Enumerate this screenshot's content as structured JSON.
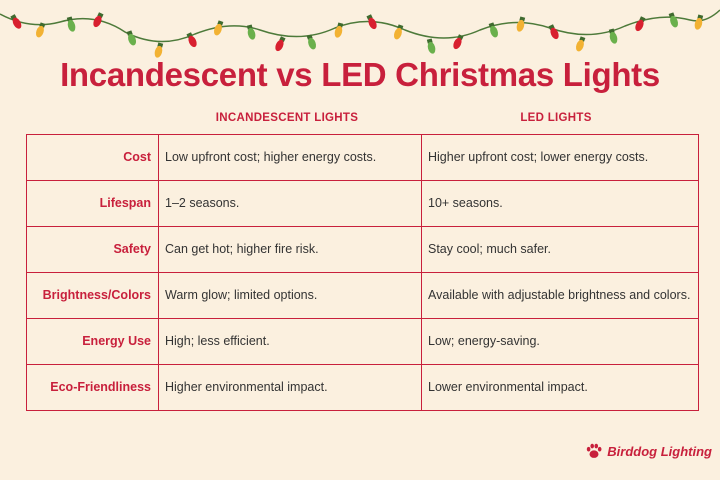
{
  "title": "Incandescent vs LED Christmas Lights",
  "columns": {
    "incandescent": "INCANDESCENT LIGHTS",
    "led": "LED LIGHTS"
  },
  "rows": [
    {
      "label": "Cost",
      "incandescent": "Low upfront cost; higher energy costs.",
      "led": "Higher upfront cost; lower energy costs."
    },
    {
      "label": "Lifespan",
      "incandescent": "1–2 seasons.",
      "led": "10+ seasons."
    },
    {
      "label": "Safety",
      "incandescent": "Can get hot; higher fire risk.",
      "led": "Stay cool; much safer."
    },
    {
      "label": "Brightness/Colors",
      "incandescent": "Warm glow; limited options.",
      "led": "Available with adjustable brightness and colors."
    },
    {
      "label": "Energy Use",
      "incandescent": "High; less efficient.",
      "led": "Low; energy-saving."
    },
    {
      "label": "Eco-Friendliness",
      "incandescent": "Higher environmental impact.",
      "led": "Lower environmental impact."
    }
  ],
  "brand": {
    "name": "Birddog Lighting",
    "icon": "paw-print-icon"
  },
  "colors": {
    "accent": "#c8203c",
    "background": "#fbf0df",
    "bulbs": [
      "#d8202f",
      "#f2b233",
      "#6ab04c",
      "#d8202f",
      "#6ab04c",
      "#f2b233"
    ]
  }
}
